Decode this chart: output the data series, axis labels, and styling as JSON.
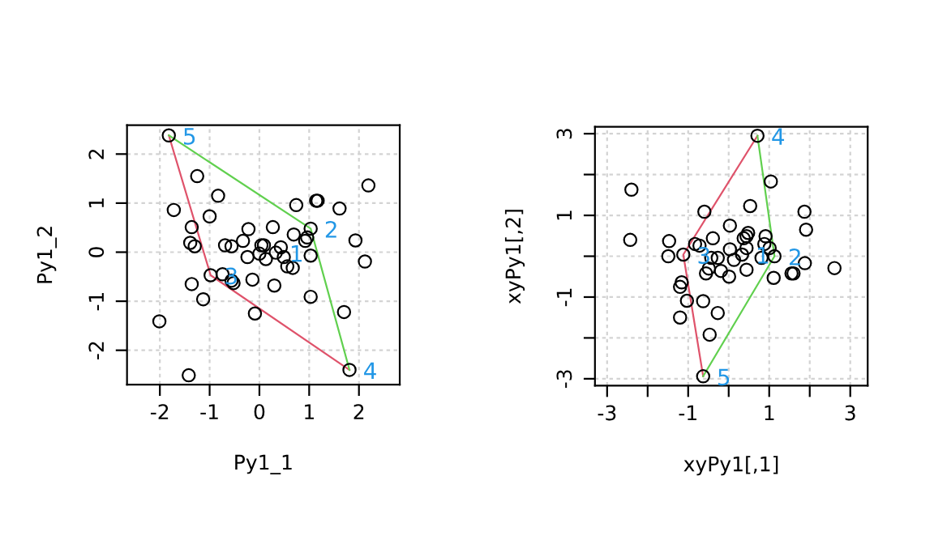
{
  "chart_data": [
    {
      "type": "scatter",
      "xlabel": "Py1_1",
      "ylabel": "Py1_2",
      "xlim": [
        -2.66,
        2.82
      ],
      "ylim": [
        -2.7,
        2.59
      ],
      "xticks": [
        -2,
        -1,
        0,
        1,
        2
      ],
      "yticks": [
        -2,
        -1,
        0,
        1,
        2
      ],
      "grid": true,
      "series": [
        {
          "marker": "circle",
          "color": "#000000",
          "x": [
            -1.82,
            -1.25,
            -0.83,
            -1.72,
            -1.0,
            -1.36,
            -1.39,
            -1.3,
            -0.69,
            -0.56,
            -0.33,
            -0.22,
            -0.24,
            0.04,
            0.09,
            0.0,
            0.13,
            0.27,
            0.43,
            0.49,
            0.56,
            0.67,
            0.69,
            0.74,
            0.92,
            0.96,
            1.03,
            1.03,
            1.14,
            1.17,
            1.61,
            1.93,
            2.12,
            2.19,
            -0.98,
            -0.74,
            -0.56,
            -0.52,
            -0.14,
            0.3,
            -1.36,
            -1.13,
            -0.09,
            1.03,
            1.7,
            -2.01,
            -1.42,
            1.81,
            0.33
          ],
          "values": [
            2.38,
            1.55,
            1.15,
            0.86,
            0.73,
            0.51,
            0.19,
            0.12,
            0.14,
            0.12,
            0.23,
            0.47,
            -0.1,
            0.14,
            0.14,
            -0.03,
            -0.14,
            0.51,
            0.1,
            -0.1,
            -0.29,
            -0.32,
            0.36,
            0.96,
            0.23,
            0.3,
            -0.07,
            0.48,
            1.05,
            1.05,
            0.89,
            0.24,
            -0.19,
            1.36,
            -0.47,
            -0.45,
            -0.58,
            -0.63,
            -0.56,
            -0.68,
            -0.65,
            -0.96,
            -1.25,
            -0.91,
            -1.22,
            -1.41,
            -2.51,
            -2.4,
            -0.01
          ]
        },
        {
          "type": "line",
          "color": "#df536b",
          "x": [
            -1.82,
            -0.98,
            1.81
          ],
          "values": [
            2.38,
            -0.47,
            -2.4
          ]
        },
        {
          "type": "line",
          "color": "#61d04f",
          "x": [
            -1.82,
            1.03,
            1.81
          ],
          "values": [
            2.38,
            0.48,
            -2.4
          ]
        }
      ],
      "annotations": [
        {
          "text": "1",
          "x": 0.33,
          "y": -0.01
        },
        {
          "text": "2",
          "x": 1.03,
          "y": 0.48
        },
        {
          "text": "3",
          "x": -0.98,
          "y": -0.47
        },
        {
          "text": "4",
          "x": 1.81,
          "y": -2.4
        },
        {
          "text": "5",
          "x": -1.82,
          "y": 2.38
        }
      ]
    },
    {
      "type": "scatter",
      "xlabel": "xyPy1[,1]",
      "ylabel": "xyPy1[,2]",
      "xlim": [
        -3.3,
        3.43
      ],
      "ylim": [
        -3.17,
        3.17
      ],
      "xticks": [
        -3,
        {
          "value": -2,
          "label": null
        },
        -1,
        {
          "value": 0,
          "label": null
        },
        1,
        {
          "value": 2,
          "label": null
        },
        3
      ],
      "yticks": [
        -3,
        {
          "value": -2,
          "label": null
        },
        -1,
        {
          "value": 0,
          "label": null
        },
        1,
        {
          "value": 2,
          "label": null
        },
        3
      ],
      "grid": true,
      "series": [
        {
          "marker": "circle",
          "color": "#000000",
          "x": [
            0.71,
            -2.4,
            1.04,
            -0.6,
            0.53,
            1.87,
            1.91,
            -2.43,
            -1.47,
            -1.49,
            -1.12,
            -0.83,
            -0.72,
            -0.39,
            0.03,
            0.48,
            0.44,
            0.37,
            0.91,
            0.88,
            1.01,
            1.13,
            0.44,
            0.03,
            -0.43,
            -0.27,
            0.13,
            0.81,
            0.44,
            -0.56,
            -0.19,
            -0.49,
            0.01,
            1.11,
            1.55,
            1.6,
            1.88,
            2.61,
            -1.16,
            -1.2,
            -1.03,
            -0.63,
            -0.27,
            -1.2,
            -0.47,
            -0.63,
            0.33
          ],
          "values": [
            2.95,
            1.63,
            1.83,
            1.09,
            1.23,
            1.09,
            0.65,
            0.4,
            0.37,
            0.0,
            0.04,
            0.3,
            0.26,
            0.44,
            0.75,
            0.57,
            0.49,
            0.44,
            0.49,
            0.3,
            0.2,
            0.0,
            0.2,
            0.17,
            -0.04,
            -0.04,
            -0.09,
            -0.04,
            -0.33,
            -0.42,
            -0.36,
            -0.3,
            -0.5,
            -0.53,
            -0.42,
            -0.42,
            -0.17,
            -0.29,
            -0.64,
            -0.75,
            -1.09,
            -1.1,
            -1.39,
            -1.5,
            -1.92,
            -2.94,
            0.04
          ]
        },
        {
          "type": "line",
          "color": "#df536b",
          "x": [
            -0.63,
            -1.12,
            0.71
          ],
          "values": [
            -2.94,
            0.04,
            2.95
          ]
        },
        {
          "type": "line",
          "color": "#61d04f",
          "x": [
            -0.63,
            1.13,
            0.71
          ],
          "values": [
            -2.94,
            0.0,
            2.95
          ]
        }
      ],
      "annotations": [
        {
          "text": "1",
          "x": 0.33,
          "y": 0.04
        },
        {
          "text": "2",
          "x": 1.13,
          "y": 0.0
        },
        {
          "text": "3",
          "x": -1.12,
          "y": 0.04
        },
        {
          "text": "4",
          "x": 0.71,
          "y": 2.95
        },
        {
          "text": "5",
          "x": -0.63,
          "y": -2.94
        }
      ]
    }
  ]
}
